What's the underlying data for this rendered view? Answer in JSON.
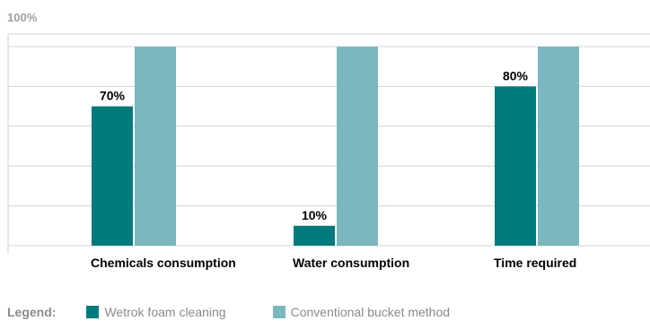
{
  "chart_data": {
    "type": "bar",
    "top_label": "100%",
    "ylim": [
      0,
      100
    ],
    "categories": [
      "Chemicals consumption",
      "Water consumption",
      "Time required"
    ],
    "series": [
      {
        "name": "Wetrok foam cleaning",
        "color": "#007a7c",
        "values": [
          70,
          10,
          80
        ]
      },
      {
        "name": "Conventional bucket method",
        "color": "#7bb7bf",
        "values": [
          100,
          100,
          100
        ]
      }
    ],
    "data_labels": [
      "70%",
      "10%",
      "80%"
    ],
    "grid": true
  },
  "legend": {
    "title": "Legend:",
    "items": [
      "Wetrok foam cleaning",
      "Conventional bucket method"
    ]
  }
}
